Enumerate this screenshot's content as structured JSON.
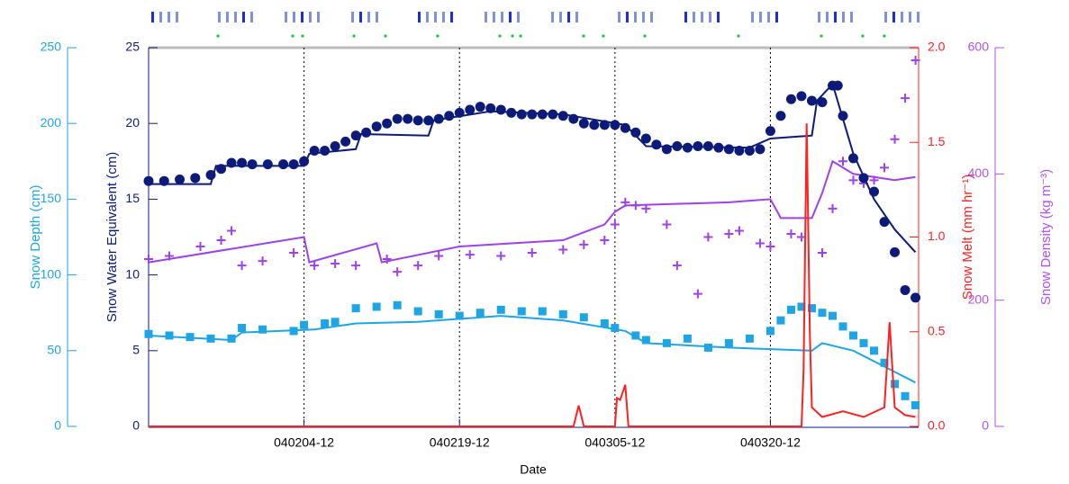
{
  "chart_data": {
    "type": "line",
    "xlabel": "Date",
    "xlim": [
      0,
      74.3
    ],
    "xticks": [
      {
        "value": 15,
        "label": "040204-12"
      },
      {
        "value": 30,
        "label": "040219-12"
      },
      {
        "value": 45,
        "label": "040305-12"
      },
      {
        "value": 60,
        "label": "040320-12"
      }
    ],
    "grid": true,
    "axes": [
      {
        "label": "Snow Depth (cm)",
        "color": "#1ea5e6",
        "lim": [
          0,
          250
        ],
        "ticks": [
          0,
          50,
          100,
          150,
          200,
          250
        ]
      },
      {
        "label": "Snow Water Equivalent (cm)",
        "color": "#0c1a7a",
        "lim": [
          0,
          25
        ],
        "ticks": [
          0,
          5,
          10,
          15,
          20,
          25
        ]
      },
      {
        "label": "Snow Melt (mm hr⁻¹)",
        "color": "#ff2020",
        "lim": [
          0,
          2
        ],
        "ticks": [
          {
            "value": 0,
            "label": "0.0"
          },
          {
            "value": 0.5,
            "label": "0.5"
          },
          {
            "value": 1,
            "label": "1.0"
          },
          {
            "value": 1.5,
            "label": "1.5"
          },
          {
            "value": 2,
            "label": "2.0"
          }
        ]
      },
      {
        "label": "Snow Density (kg m⁻³)",
        "color": "#b050f0",
        "lim": [
          0,
          600
        ],
        "ticks": [
          0,
          200,
          400,
          600
        ]
      }
    ],
    "series": [
      {
        "axis": 3,
        "marker": "line",
        "color": "#a040e8",
        "x": [
          0,
          15,
          15.5,
          22,
          22.5,
          30,
          40,
          44,
          45,
          46,
          56,
          60,
          61,
          64,
          65,
          66,
          68,
          70,
          72,
          74
        ],
        "values": [
          260,
          300,
          260,
          290,
          260,
          285,
          295,
          320,
          340,
          350,
          355,
          360,
          330,
          330,
          370,
          420,
          400,
          395,
          390,
          395
        ]
      },
      {
        "axis": 3,
        "marker": "plus",
        "color": "#a040e8",
        "x": [
          0,
          2,
          5,
          7,
          8,
          9,
          11,
          14,
          16,
          18,
          20,
          23,
          24,
          26,
          28,
          31,
          34,
          37,
          40,
          42,
          44,
          45,
          46,
          47,
          48,
          50,
          51,
          53,
          54,
          56,
          57,
          59,
          60,
          62,
          63,
          65,
          66,
          67,
          68,
          69,
          70,
          71,
          72,
          73,
          74
        ],
        "values": [
          265,
          270,
          285,
          295,
          310,
          255,
          262,
          275,
          255,
          258,
          255,
          265,
          245,
          255,
          270,
          272,
          270,
          275,
          280,
          288,
          295,
          320,
          355,
          350,
          345,
          320,
          255,
          210,
          300,
          305,
          310,
          290,
          285,
          305,
          300,
          275,
          345,
          420,
          390,
          385,
          390,
          410,
          455,
          520,
          580
        ]
      },
      {
        "axis": 0,
        "marker": "line",
        "color": "#1ea5e6",
        "x": [
          0,
          8,
          9,
          16,
          20,
          26,
          34,
          40,
          46,
          48,
          56,
          60,
          64,
          65,
          68,
          72,
          74
        ],
        "values": [
          60,
          57,
          62,
          64,
          68,
          69,
          73,
          70,
          63,
          55,
          52,
          51,
          50,
          55,
          50,
          36,
          29
        ]
      },
      {
        "axis": 0,
        "marker": "square",
        "color": "#1ea5e6",
        "x": [
          0,
          2,
          4,
          6,
          8,
          9,
          11,
          14,
          15,
          17,
          18,
          20,
          22,
          24,
          26,
          28,
          30,
          32,
          34,
          36,
          38,
          40,
          42,
          44,
          45,
          47,
          48,
          50,
          52,
          54,
          56,
          58,
          60,
          61,
          62,
          63,
          64,
          65,
          66,
          67,
          68,
          69,
          70,
          71,
          72,
          73,
          74
        ],
        "values": [
          61,
          60,
          59,
          58,
          58,
          65,
          64,
          63,
          67,
          68,
          69,
          78,
          79,
          80,
          76,
          74,
          73,
          75,
          77,
          76,
          76,
          74,
          72,
          68,
          65,
          60,
          57,
          55,
          58,
          52,
          55,
          58,
          63,
          70,
          77,
          79,
          78,
          75,
          73,
          66,
          60,
          55,
          50,
          42,
          28,
          20,
          14
        ]
      },
      {
        "axis": 1,
        "marker": "line",
        "color": "#0c1a7a",
        "x": [
          0,
          6,
          6.5,
          15,
          15.5,
          20,
          20.5,
          27,
          27.5,
          33,
          40,
          46,
          48,
          58,
          60,
          64,
          64.5,
          66,
          68,
          70,
          72,
          74
        ],
        "values": [
          16,
          16,
          17.2,
          17.2,
          18,
          18.3,
          19.3,
          19.2,
          20.2,
          20.8,
          20.6,
          19.9,
          18.5,
          18.4,
          19,
          19.2,
          21.5,
          22.6,
          18,
          15,
          13,
          11.5
        ]
      },
      {
        "axis": 1,
        "marker": "circle",
        "color": "#0c1a7a",
        "x": [
          0,
          1.5,
          3,
          4.5,
          6,
          7,
          8,
          9,
          10,
          11.5,
          13,
          14,
          15,
          16,
          17,
          18,
          19,
          20,
          21,
          22,
          23,
          24,
          25,
          26,
          27,
          28,
          29,
          30,
          31,
          32,
          33,
          34,
          35,
          36,
          37,
          38,
          39,
          40,
          41,
          42,
          43,
          44,
          45,
          46,
          47,
          48,
          49,
          50,
          51,
          52,
          53,
          54,
          55,
          56,
          57,
          58,
          59,
          60,
          61,
          62,
          63,
          64,
          65,
          66,
          66.5,
          67,
          68,
          69,
          70,
          71,
          72,
          73,
          74
        ],
        "values": [
          16.2,
          16.2,
          16.3,
          16.4,
          16.6,
          17,
          17.4,
          17.4,
          17.3,
          17.3,
          17.3,
          17.3,
          17.5,
          18.2,
          18.2,
          18.5,
          18.8,
          19.2,
          19.4,
          19.8,
          20,
          20.3,
          20.3,
          20.2,
          20.2,
          20.3,
          20.5,
          20.7,
          20.9,
          21.1,
          21,
          20.9,
          20.7,
          20.6,
          20.6,
          20.6,
          20.6,
          20.5,
          20.3,
          20,
          19.9,
          19.9,
          19.9,
          19.7,
          19.4,
          19,
          18.6,
          18.3,
          18.5,
          18.4,
          18.5,
          18.5,
          18.4,
          18.3,
          18.2,
          18.2,
          18.3,
          19.5,
          20.5,
          21.6,
          21.8,
          21.5,
          21.4,
          22.5,
          22.5,
          20.5,
          17.7,
          16.4,
          15.5,
          13.5,
          11.5,
          9,
          8.5
        ]
      },
      {
        "axis": 2,
        "marker": "line",
        "color": "#ff2020",
        "x": [
          0,
          41,
          41.5,
          42,
          45,
          45.2,
          45.5,
          46,
          46.3,
          63,
          63.2,
          63.5,
          63.8,
          64,
          65,
          67,
          69,
          71,
          71.5,
          72,
          73,
          74
        ],
        "values": [
          0,
          0,
          0.11,
          0,
          0,
          0.15,
          0.14,
          0.22,
          0,
          0,
          0.3,
          1.6,
          0.5,
          0.1,
          0.05,
          0.08,
          0.05,
          0.1,
          0.55,
          0.1,
          0.06,
          0.05
        ]
      }
    ]
  }
}
